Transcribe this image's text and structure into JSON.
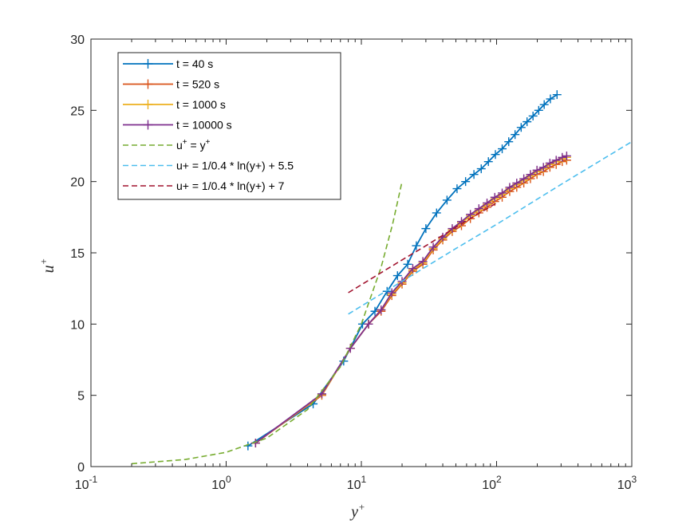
{
  "chart_data": {
    "type": "line",
    "xscale": "log",
    "xlim": [
      0.1,
      1000
    ],
    "ylim": [
      0,
      30
    ],
    "xticks": [
      0.1,
      1,
      10,
      100,
      1000
    ],
    "xtick_labels": [
      {
        "base": "10",
        "exp": "-1"
      },
      {
        "base": "10",
        "exp": "0"
      },
      {
        "base": "10",
        "exp": "1"
      },
      {
        "base": "10",
        "exp": "2"
      },
      {
        "base": "10",
        "exp": "3"
      }
    ],
    "yticks": [
      0,
      5,
      10,
      15,
      20,
      25,
      30
    ],
    "ytick_labels": [
      "0",
      "5",
      "10",
      "15",
      "20",
      "25",
      "30"
    ],
    "xlabel": {
      "base": "y",
      "sup": "+"
    },
    "ylabel": {
      "base": "u",
      "sup": "+"
    },
    "grid": false,
    "legend_position": "top-left",
    "series": [
      {
        "name": "t = 40 s",
        "color": "#0072BD",
        "style": "solid",
        "marker": "+",
        "x": [
          1.45,
          4.4,
          7.4,
          10.2,
          12.6,
          15.5,
          18.5,
          22,
          25.5,
          30,
          36,
          43,
          51,
          59,
          68,
          77,
          87,
          98,
          110,
          123,
          137,
          152,
          168,
          186,
          205,
          225,
          250,
          280
        ],
        "y": [
          1.45,
          4.4,
          7.4,
          10.0,
          10.9,
          12.3,
          13.4,
          14.2,
          15.5,
          16.7,
          17.8,
          18.7,
          19.5,
          20.0,
          20.5,
          20.9,
          21.4,
          21.9,
          22.3,
          22.8,
          23.3,
          23.8,
          24.2,
          24.6,
          25.0,
          25.4,
          25.8,
          26.1
        ]
      },
      {
        "name": "t = 520 s",
        "color": "#D95319",
        "style": "solid",
        "marker": "+",
        "x": [
          1.65,
          5.1,
          8.3,
          11.3,
          14,
          16.8,
          20,
          24,
          28.5,
          34,
          40,
          47,
          55,
          64,
          74,
          85,
          97,
          110,
          125,
          141,
          159,
          178,
          199,
          222,
          248,
          276,
          306,
          330
        ],
        "y": [
          1.65,
          5.0,
          8.3,
          10.0,
          10.9,
          12.0,
          12.8,
          13.7,
          14.2,
          15.2,
          15.9,
          16.5,
          16.9,
          17.4,
          17.8,
          18.2,
          18.6,
          18.9,
          19.3,
          19.6,
          19.9,
          20.2,
          20.5,
          20.7,
          21.0,
          21.2,
          21.4,
          21.5
        ]
      },
      {
        "name": "t = 1000 s",
        "color": "#EDB120",
        "style": "solid",
        "marker": "+",
        "x": [
          1.65,
          5.1,
          8.3,
          11.3,
          14,
          16.8,
          20,
          24,
          28.5,
          34,
          40,
          47,
          55,
          64,
          74,
          85,
          97,
          110,
          125,
          141,
          159,
          178,
          199,
          222,
          248,
          276,
          306,
          330
        ],
        "y": [
          1.65,
          5.05,
          8.3,
          10.0,
          11.0,
          12.1,
          12.9,
          13.8,
          14.3,
          15.3,
          16.0,
          16.6,
          17.1,
          17.6,
          18.0,
          18.4,
          18.8,
          19.1,
          19.5,
          19.8,
          20.1,
          20.4,
          20.7,
          20.9,
          21.2,
          21.4,
          21.6,
          21.7
        ]
      },
      {
        "name": "t = 10000 s",
        "color": "#7E2F8E",
        "style": "solid",
        "marker": "+",
        "x": [
          1.65,
          5.1,
          8.3,
          11.3,
          14,
          16.8,
          20,
          24,
          28.5,
          34,
          40,
          47,
          55,
          64,
          74,
          85,
          97,
          110,
          125,
          141,
          159,
          178,
          199,
          222,
          248,
          276,
          306,
          330
        ],
        "y": [
          1.65,
          5.1,
          8.3,
          10.0,
          11.0,
          12.2,
          13.0,
          13.9,
          14.4,
          15.4,
          16.1,
          16.7,
          17.2,
          17.7,
          18.1,
          18.5,
          18.9,
          19.2,
          19.6,
          19.9,
          20.2,
          20.5,
          20.8,
          21.0,
          21.3,
          21.5,
          21.7,
          21.8
        ]
      },
      {
        "name": "u^+ = y^+",
        "legend_parts": [
          {
            "t": "u"
          },
          {
            "t": "+",
            "sup": true
          },
          {
            "t": " = y"
          },
          {
            "t": "+",
            "sup": true
          }
        ],
        "color": "#77AC30",
        "style": "dashed",
        "x": [
          0.2,
          0.5,
          1,
          2,
          4,
          7,
          10,
          14,
          17,
          20
        ],
        "y": [
          0.2,
          0.5,
          1,
          2,
          4,
          7,
          10,
          14,
          17,
          20
        ]
      },
      {
        "name": "u+ = 1/0.4 * ln(y+) + 5.5",
        "color": "#4DBEEE",
        "style": "dashed",
        "x": [
          8,
          20,
          50,
          100,
          300,
          1000
        ],
        "y": [
          10.7,
          13.0,
          15.3,
          17.0,
          19.8,
          22.8
        ]
      },
      {
        "name": "u+ = 1/0.4 * ln(y+) + 7",
        "color": "#A2142F",
        "style": "dashed",
        "x": [
          8,
          20,
          30,
          50,
          100
        ],
        "y": [
          12.2,
          14.5,
          15.5,
          16.8,
          18.5
        ]
      }
    ]
  }
}
